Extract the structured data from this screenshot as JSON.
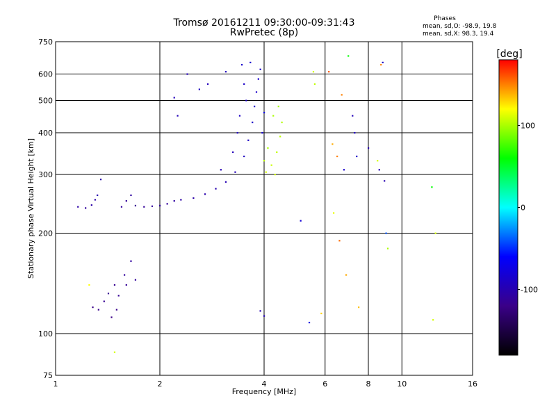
{
  "title": "Tromsø 20161211 09:30:00-09:31:43",
  "subtitle": "RwPretec (8p)",
  "phase_box": {
    "title": "Phases",
    "line_o": "mean, sd,O: -98.9, 19.8",
    "line_x": "mean, sd,X:  98.3, 19.4"
  },
  "chart_data": {
    "type": "scatter",
    "xlabel": "Frequency [MHz]",
    "ylabel": "Stationary phase Virtual Height [km]",
    "xscale": "log",
    "yscale": "log",
    "xlim": [
      1,
      16
    ],
    "ylim": [
      75,
      750
    ],
    "grid": true,
    "xticks": [
      1,
      2,
      4,
      6,
      8,
      10,
      16
    ],
    "xtick_labels": [
      "1",
      "2",
      "4",
      "6",
      "8",
      "10",
      "16"
    ],
    "yticks": [
      75,
      100,
      200,
      300,
      400,
      500,
      600,
      750
    ],
    "ytick_labels": [
      "75",
      "100",
      "200",
      "300",
      "400",
      "500",
      "600",
      "750"
    ],
    "colorbar": {
      "label": "[deg]",
      "range": [
        -180,
        180
      ],
      "ticks": [
        100,
        0,
        -100
      ],
      "tick_labels": [
        "100",
        "0",
        "-100"
      ],
      "colors": [
        "#ff0000",
        "#ffff00",
        "#00ff00",
        "#00ffff",
        "#0000ff",
        "#3a0088",
        "#000000"
      ]
    },
    "series": [
      {
        "points": [
          [
            1.16,
            240,
            -105
          ],
          [
            1.22,
            238,
            -108
          ],
          [
            1.27,
            243,
            -104
          ],
          [
            1.3,
            252,
            -102
          ],
          [
            1.32,
            260,
            -100
          ],
          [
            1.35,
            290,
            -103
          ],
          [
            1.55,
            240,
            -110
          ],
          [
            1.6,
            250,
            -112
          ],
          [
            1.65,
            260,
            -108
          ],
          [
            1.7,
            242,
            -115
          ],
          [
            1.8,
            240,
            -112
          ],
          [
            1.9,
            241,
            -110
          ],
          [
            2.0,
            242,
            -112
          ],
          [
            2.1,
            245,
            -110
          ],
          [
            2.2,
            250,
            -108
          ],
          [
            2.3,
            252,
            -106
          ],
          [
            2.5,
            255,
            -104
          ],
          [
            2.7,
            262,
            -102
          ],
          [
            2.9,
            272,
            -100
          ],
          [
            3.1,
            285,
            -98
          ],
          [
            3.3,
            305,
            -96
          ],
          [
            3.5,
            340,
            -92
          ],
          [
            3.6,
            380,
            -90
          ],
          [
            3.7,
            430,
            -88
          ],
          [
            3.75,
            480,
            -87
          ],
          [
            3.8,
            530,
            -86
          ],
          [
            3.85,
            580,
            -85
          ],
          [
            3.9,
            620,
            -85
          ],
          [
            3.65,
            650,
            -84
          ],
          [
            3.45,
            640,
            -86
          ],
          [
            3.5,
            560,
            -88
          ],
          [
            3.55,
            500,
            -89
          ],
          [
            3.4,
            450,
            -90
          ],
          [
            3.35,
            400,
            -92
          ],
          [
            3.25,
            350,
            -95
          ],
          [
            3.0,
            310,
            -98
          ],
          [
            2.4,
            600,
            -95
          ],
          [
            2.75,
            560,
            -95
          ],
          [
            3.1,
            610,
            -93
          ],
          [
            2.2,
            510,
            -95
          ],
          [
            2.25,
            450,
            -96
          ],
          [
            2.6,
            540,
            -92
          ],
          [
            1.28,
            120,
            -120
          ],
          [
            1.33,
            118,
            -118
          ],
          [
            1.38,
            125,
            -115
          ],
          [
            1.42,
            132,
            -115
          ],
          [
            1.48,
            140,
            -116
          ],
          [
            1.52,
            130,
            -114
          ],
          [
            1.58,
            150,
            -110
          ],
          [
            1.65,
            165,
            -108
          ],
          [
            1.6,
            140,
            -113
          ],
          [
            1.45,
            112,
            -120
          ],
          [
            1.5,
            118,
            -118
          ],
          [
            1.7,
            145,
            -110
          ],
          [
            4.05,
            305,
            110
          ],
          [
            4.2,
            320,
            108
          ],
          [
            4.35,
            350,
            105
          ],
          [
            4.45,
            390,
            104
          ],
          [
            4.5,
            430,
            102
          ],
          [
            4.3,
            300,
            110
          ],
          [
            4.0,
            330,
            105
          ],
          [
            4.1,
            360,
            100
          ],
          [
            4.25,
            450,
            100
          ],
          [
            4.4,
            480,
            98
          ],
          [
            3.95,
            400,
            -80
          ],
          [
            4.0,
            460,
            -75
          ],
          [
            3.9,
            117,
            -98
          ],
          [
            4.0,
            113,
            -96
          ],
          [
            5.1,
            218,
            -80
          ],
          [
            5.4,
            108,
            -75
          ],
          [
            5.55,
            610,
            110
          ],
          [
            5.6,
            560,
            105
          ],
          [
            5.85,
            115,
            130
          ],
          [
            6.15,
            610,
            160
          ],
          [
            6.3,
            370,
            140
          ],
          [
            6.35,
            230,
            115
          ],
          [
            6.5,
            340,
            150
          ],
          [
            6.6,
            190,
            155
          ],
          [
            6.7,
            520,
            150
          ],
          [
            6.8,
            310,
            -85
          ],
          [
            6.9,
            150,
            140
          ],
          [
            7.0,
            680,
            60
          ],
          [
            7.2,
            450,
            -95
          ],
          [
            7.3,
            400,
            -90
          ],
          [
            7.4,
            340,
            -88
          ],
          [
            7.5,
            120,
            135
          ],
          [
            8.0,
            360,
            -100
          ],
          [
            8.5,
            330,
            110
          ],
          [
            8.6,
            310,
            -95
          ],
          [
            8.7,
            640,
            150
          ],
          [
            8.8,
            650,
            -90
          ],
          [
            8.9,
            287,
            -100
          ],
          [
            9.0,
            200,
            -40
          ],
          [
            9.1,
            180,
            100
          ],
          [
            12.2,
            275,
            60
          ],
          [
            12.5,
            200,
            110
          ],
          [
            12.3,
            110,
            110
          ],
          [
            1.48,
            88,
            110
          ],
          [
            1.25,
            140,
            120
          ]
        ]
      }
    ]
  }
}
